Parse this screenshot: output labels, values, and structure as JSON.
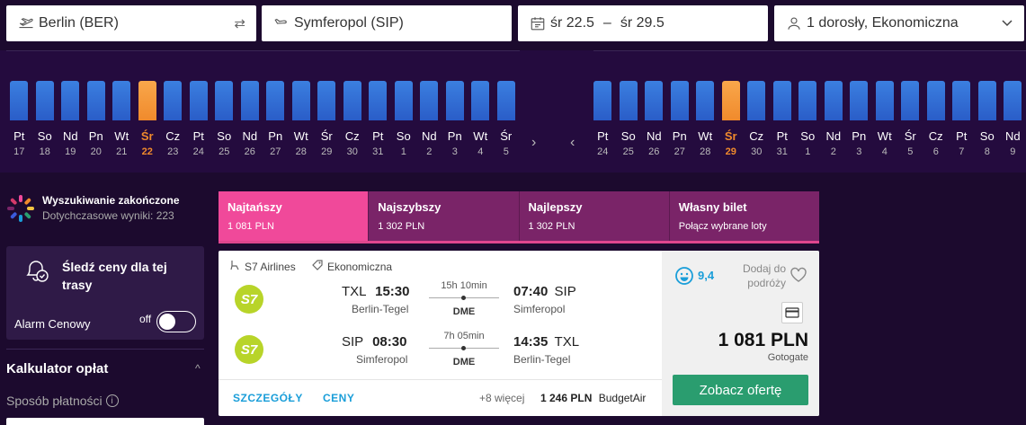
{
  "search": {
    "from": "Berlin (BER)",
    "to": "Symferopol (SIP)",
    "date_from": "śr 22.5",
    "date_sep": "–",
    "date_to": "śr 29.5",
    "passengers": "1 dorosły, Ekonomiczna"
  },
  "outbound_days": [
    {
      "name": "Pt",
      "num": "17"
    },
    {
      "name": "So",
      "num": "18"
    },
    {
      "name": "Nd",
      "num": "19"
    },
    {
      "name": "Pn",
      "num": "20"
    },
    {
      "name": "Wt",
      "num": "21"
    },
    {
      "name": "Śr",
      "num": "22"
    },
    {
      "name": "Cz",
      "num": "23"
    },
    {
      "name": "Pt",
      "num": "24"
    },
    {
      "name": "So",
      "num": "25"
    },
    {
      "name": "Nd",
      "num": "26"
    },
    {
      "name": "Pn",
      "num": "27"
    },
    {
      "name": "Wt",
      "num": "28"
    },
    {
      "name": "Śr",
      "num": "29"
    },
    {
      "name": "Cz",
      "num": "30"
    },
    {
      "name": "Pt",
      "num": "31"
    },
    {
      "name": "So",
      "num": "1"
    },
    {
      "name": "Nd",
      "num": "2"
    },
    {
      "name": "Pn",
      "num": "3"
    },
    {
      "name": "Wt",
      "num": "4"
    },
    {
      "name": "Śr",
      "num": "5"
    }
  ],
  "outbound_selected": 5,
  "return_days": [
    {
      "name": "Pt",
      "num": "24"
    },
    {
      "name": "So",
      "num": "25"
    },
    {
      "name": "Nd",
      "num": "26"
    },
    {
      "name": "Pn",
      "num": "27"
    },
    {
      "name": "Wt",
      "num": "28"
    },
    {
      "name": "Śr",
      "num": "29"
    },
    {
      "name": "Cz",
      "num": "30"
    },
    {
      "name": "Pt",
      "num": "31"
    },
    {
      "name": "So",
      "num": "1"
    },
    {
      "name": "Nd",
      "num": "2"
    },
    {
      "name": "Pn",
      "num": "3"
    },
    {
      "name": "Wt",
      "num": "4"
    },
    {
      "name": "Śr",
      "num": "5"
    },
    {
      "name": "Cz",
      "num": "6"
    },
    {
      "name": "Pt",
      "num": "7"
    },
    {
      "name": "So",
      "num": "8"
    },
    {
      "name": "Nd",
      "num": "9"
    }
  ],
  "return_selected": 5,
  "sidebar": {
    "status_title": "Wyszukiwanie zakończone",
    "status_sub": "Dotychczasowe wyniki: 223",
    "alert_title": "Śledź ceny dla tej trasy",
    "alarm_label": "Alarm Cenowy",
    "toggle_state": "off",
    "calc_title": "Kalkulator opłat",
    "payment_label": "Sposób płatności",
    "info_glyph": "i"
  },
  "tabs": [
    {
      "label": "Najtańszy",
      "value": "1 081 PLN"
    },
    {
      "label": "Najszybszy",
      "value": "1 302 PLN"
    },
    {
      "label": "Najlepszy",
      "value": "1 302 PLN"
    },
    {
      "label": "Własny bilet",
      "value": "Połącz wybrane loty"
    }
  ],
  "result": {
    "airline": "S7 Airlines",
    "cabin": "Ekonomiczna",
    "logo_text": "S7",
    "outbound": {
      "dep_code": "TXL",
      "dep_time": "15:30",
      "dep_city": "Berlin-Tegel",
      "duration": "15h 10min",
      "via": "DME",
      "arr_time": "07:40",
      "arr_code": "SIP",
      "arr_city": "Simferopol"
    },
    "inbound": {
      "dep_code": "SIP",
      "dep_time": "08:30",
      "dep_city": "Simferopol",
      "duration": "7h 05min",
      "via": "DME",
      "arr_time": "14:35",
      "arr_code": "TXL",
      "arr_city": "Berlin-Tegel"
    },
    "details_link": "SZCZEGÓŁY",
    "prices_link": "CENY",
    "more": "+8 więcej",
    "alt_price": "1 246 PLN",
    "alt_provider": "BudgetAir",
    "score": "9,4",
    "add_to_trip": "Dodaj do podróży",
    "price": "1 081 PLN",
    "provider": "Gotogate",
    "offer_button": "Zobacz ofertę"
  },
  "colors": {
    "background": "#1c0a2e",
    "bar": "#2a5dc8",
    "bar_selected": "#f08a2c",
    "tab_active": "#f0499a",
    "tab": "#7a2468",
    "offer_button": "#2a9d6f",
    "link": "#1a9ed9"
  }
}
